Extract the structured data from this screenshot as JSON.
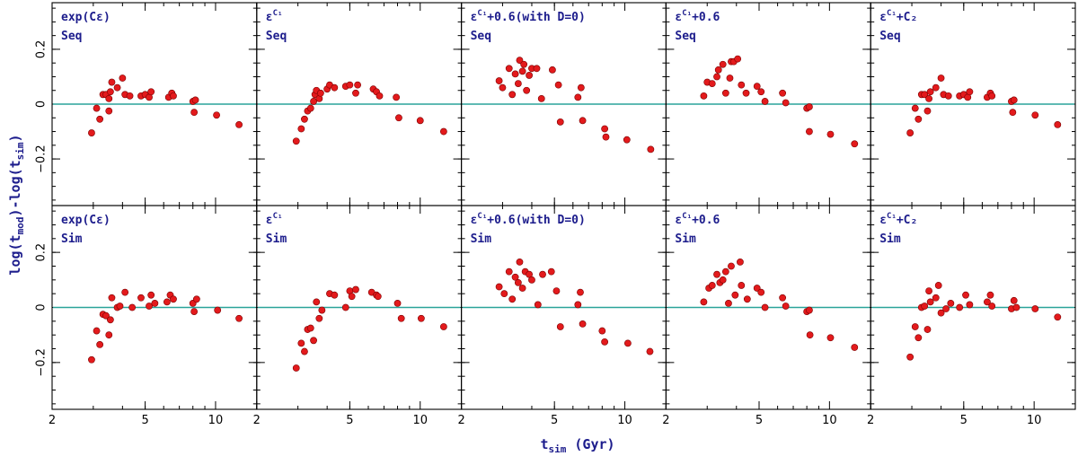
{
  "colors": {
    "axis_text": "#1c1c8c",
    "points": "#e31a1c",
    "zero_line": "#2aa39a"
  },
  "chart_data": {
    "type": "scatter",
    "xlabel": "t",
    "xlabel_sub": "sim",
    "xlabel_unit": " (Gyr)",
    "ylabel": "log(t_mod)-log(t_sim)",
    "ylabel_parts": {
      "a": "log(t",
      "a_sub": "mod",
      "b": ")-log(t",
      "b_sub": "sim",
      "c": ")"
    },
    "xscale": "log",
    "xlim": [
      2.0,
      15.0
    ],
    "ylim": [
      -0.37,
      0.37
    ],
    "xticks": [
      2,
      5,
      10
    ],
    "xtick_labels": [
      "2",
      "5",
      "10"
    ],
    "yticks": [
      0.2,
      0,
      -0.2
    ],
    "ytick_labels": [
      "0.2",
      "0",
      "−0.2"
    ],
    "reference_line_y": 0,
    "columns": [
      {
        "base": "exp(C",
        "sym": "ε",
        "close": ")",
        "sup": "",
        "suffix": ""
      },
      {
        "base": "",
        "sym": "ε",
        "close": "",
        "sup": "C₁",
        "suffix": ""
      },
      {
        "base": "",
        "sym": "ε",
        "close": "",
        "sup": "C₁",
        "suffix": "+0.6(with D=0)"
      },
      {
        "base": "",
        "sym": "ε",
        "close": "",
        "sup": "C₁",
        "suffix": "+0.6"
      },
      {
        "base": "",
        "sym": "ε",
        "close": "",
        "sup": "C₁",
        "suffix": "+C₂"
      }
    ],
    "rows": [
      "Seq",
      "Sim"
    ],
    "panels": [
      {
        "row": 0,
        "col": 0,
        "x": [
          2.95,
          3.1,
          3.2,
          3.3,
          3.4,
          3.5,
          3.5,
          3.55,
          3.6,
          3.8,
          4.0,
          4.1,
          4.3,
          4.8,
          5.0,
          5.2,
          5.3,
          6.3,
          6.5,
          6.6,
          8.0,
          8.1,
          8.2,
          10.1,
          12.6
        ],
        "y": [
          -0.105,
          -0.015,
          -0.055,
          0.035,
          0.035,
          -0.025,
          0.02,
          0.045,
          0.08,
          0.06,
          0.095,
          0.035,
          0.03,
          0.03,
          0.035,
          0.025,
          0.045,
          0.025,
          0.04,
          0.03,
          0.01,
          -0.03,
          0.015,
          -0.04,
          -0.075
        ]
      },
      {
        "row": 0,
        "col": 1,
        "x": [
          2.95,
          3.1,
          3.2,
          3.3,
          3.4,
          3.5,
          3.55,
          3.6,
          3.7,
          3.75,
          4.0,
          4.1,
          4.3,
          4.8,
          5.0,
          5.3,
          5.4,
          6.3,
          6.5,
          6.7,
          7.9,
          8.1,
          10.0,
          12.6
        ],
        "y": [
          -0.135,
          -0.09,
          -0.055,
          -0.025,
          -0.015,
          0.01,
          0.035,
          0.05,
          0.02,
          0.04,
          0.055,
          0.07,
          0.06,
          0.065,
          0.07,
          0.04,
          0.07,
          0.055,
          0.045,
          0.03,
          0.025,
          -0.05,
          -0.06,
          -0.1
        ]
      },
      {
        "row": 0,
        "col": 2,
        "x": [
          2.9,
          3.0,
          3.2,
          3.3,
          3.4,
          3.5,
          3.55,
          3.65,
          3.7,
          3.8,
          3.9,
          4.0,
          4.2,
          4.4,
          4.9,
          5.2,
          5.3,
          6.3,
          6.5,
          6.6,
          8.2,
          8.3,
          10.2,
          12.9
        ],
        "y": [
          0.085,
          0.06,
          0.13,
          0.035,
          0.11,
          0.075,
          0.16,
          0.12,
          0.145,
          0.05,
          0.105,
          0.13,
          0.13,
          0.02,
          0.125,
          0.07,
          -0.065,
          0.025,
          0.06,
          -0.06,
          -0.09,
          -0.12,
          -0.13,
          -0.165
        ]
      },
      {
        "row": 0,
        "col": 3,
        "x": [
          2.9,
          3.0,
          3.15,
          3.3,
          3.35,
          3.5,
          3.6,
          3.75,
          3.8,
          3.9,
          4.05,
          4.2,
          4.4,
          4.9,
          5.1,
          5.3,
          6.3,
          6.5,
          8.0,
          8.2,
          8.2,
          10.1,
          12.8
        ],
        "y": [
          0.03,
          0.08,
          0.075,
          0.1,
          0.125,
          0.145,
          0.04,
          0.095,
          0.155,
          0.155,
          0.165,
          0.07,
          0.04,
          0.065,
          0.045,
          0.01,
          0.04,
          0.005,
          -0.015,
          -0.01,
          -0.1,
          -0.11,
          -0.145
        ]
      },
      {
        "row": 0,
        "col": 4,
        "x": [
          2.95,
          3.1,
          3.2,
          3.3,
          3.4,
          3.5,
          3.55,
          3.6,
          3.8,
          4.0,
          4.1,
          4.3,
          4.8,
          5.0,
          5.2,
          5.3,
          6.3,
          6.5,
          6.6,
          8.0,
          8.1,
          8.2,
          10.1,
          12.6
        ],
        "y": [
          -0.105,
          -0.015,
          -0.055,
          0.035,
          0.035,
          -0.025,
          0.02,
          0.045,
          0.06,
          0.095,
          0.035,
          0.03,
          0.03,
          0.035,
          0.025,
          0.045,
          0.025,
          0.04,
          0.03,
          0.01,
          -0.03,
          0.015,
          -0.04,
          -0.075
        ]
      },
      {
        "row": 1,
        "col": 0,
        "x": [
          2.95,
          3.1,
          3.2,
          3.3,
          3.4,
          3.5,
          3.55,
          3.6,
          3.8,
          3.9,
          4.1,
          4.4,
          4.8,
          5.2,
          5.3,
          5.5,
          6.2,
          6.4,
          6.6,
          8.0,
          8.1,
          8.3,
          10.2,
          12.6
        ],
        "y": [
          -0.19,
          -0.085,
          -0.135,
          -0.025,
          -0.03,
          -0.1,
          -0.045,
          0.035,
          0.0,
          0.005,
          0.055,
          0.0,
          0.035,
          0.005,
          0.045,
          0.015,
          0.02,
          0.045,
          0.03,
          0.015,
          -0.015,
          0.03,
          -0.01,
          -0.04
        ]
      },
      {
        "row": 1,
        "col": 1,
        "x": [
          2.95,
          3.1,
          3.2,
          3.3,
          3.4,
          3.5,
          3.6,
          3.7,
          3.8,
          4.1,
          4.3,
          4.8,
          5.0,
          5.1,
          5.3,
          6.2,
          6.5,
          6.6,
          8.0,
          8.3,
          10.1,
          12.6
        ],
        "y": [
          -0.22,
          -0.13,
          -0.16,
          -0.08,
          -0.075,
          -0.12,
          0.02,
          -0.04,
          -0.01,
          0.05,
          0.045,
          0.0,
          0.06,
          0.04,
          0.065,
          0.055,
          0.045,
          0.04,
          0.015,
          -0.04,
          -0.04,
          -0.07
        ]
      },
      {
        "row": 1,
        "col": 2,
        "x": [
          2.9,
          3.05,
          3.2,
          3.3,
          3.4,
          3.5,
          3.55,
          3.65,
          3.75,
          3.9,
          4.0,
          4.25,
          4.45,
          4.85,
          5.1,
          5.3,
          6.3,
          6.45,
          6.6,
          8.0,
          8.2,
          10.3,
          12.8
        ],
        "y": [
          0.075,
          0.05,
          0.13,
          0.03,
          0.11,
          0.09,
          0.165,
          0.07,
          0.13,
          0.12,
          0.1,
          0.01,
          0.12,
          0.13,
          0.06,
          -0.07,
          0.01,
          0.055,
          -0.06,
          -0.085,
          -0.125,
          -0.13,
          -0.16
        ]
      },
      {
        "row": 1,
        "col": 3,
        "x": [
          2.9,
          3.05,
          3.15,
          3.3,
          3.4,
          3.5,
          3.6,
          3.7,
          3.8,
          3.95,
          4.15,
          4.2,
          4.45,
          4.9,
          5.1,
          5.3,
          6.3,
          6.5,
          8.0,
          8.2,
          8.25,
          10.1,
          12.8
        ],
        "y": [
          0.02,
          0.07,
          0.08,
          0.12,
          0.09,
          0.1,
          0.13,
          0.015,
          0.15,
          0.045,
          0.165,
          0.08,
          0.03,
          0.07,
          0.055,
          0.0,
          0.035,
          0.005,
          -0.015,
          -0.01,
          -0.1,
          -0.11,
          -0.145
        ]
      },
      {
        "row": 1,
        "col": 4,
        "x": [
          2.95,
          3.1,
          3.2,
          3.3,
          3.4,
          3.5,
          3.55,
          3.6,
          3.8,
          3.9,
          4.0,
          4.2,
          4.4,
          4.8,
          5.1,
          5.3,
          6.3,
          6.5,
          6.6,
          8.0,
          8.2,
          8.4,
          10.1,
          12.6
        ],
        "y": [
          -0.18,
          -0.07,
          -0.11,
          -0.0,
          0.005,
          -0.08,
          0.06,
          0.02,
          0.035,
          0.08,
          -0.02,
          -0.005,
          0.015,
          0.0,
          0.045,
          0.01,
          0.02,
          0.045,
          0.005,
          -0.005,
          0.025,
          0.0,
          -0.005,
          -0.035
        ]
      }
    ]
  }
}
